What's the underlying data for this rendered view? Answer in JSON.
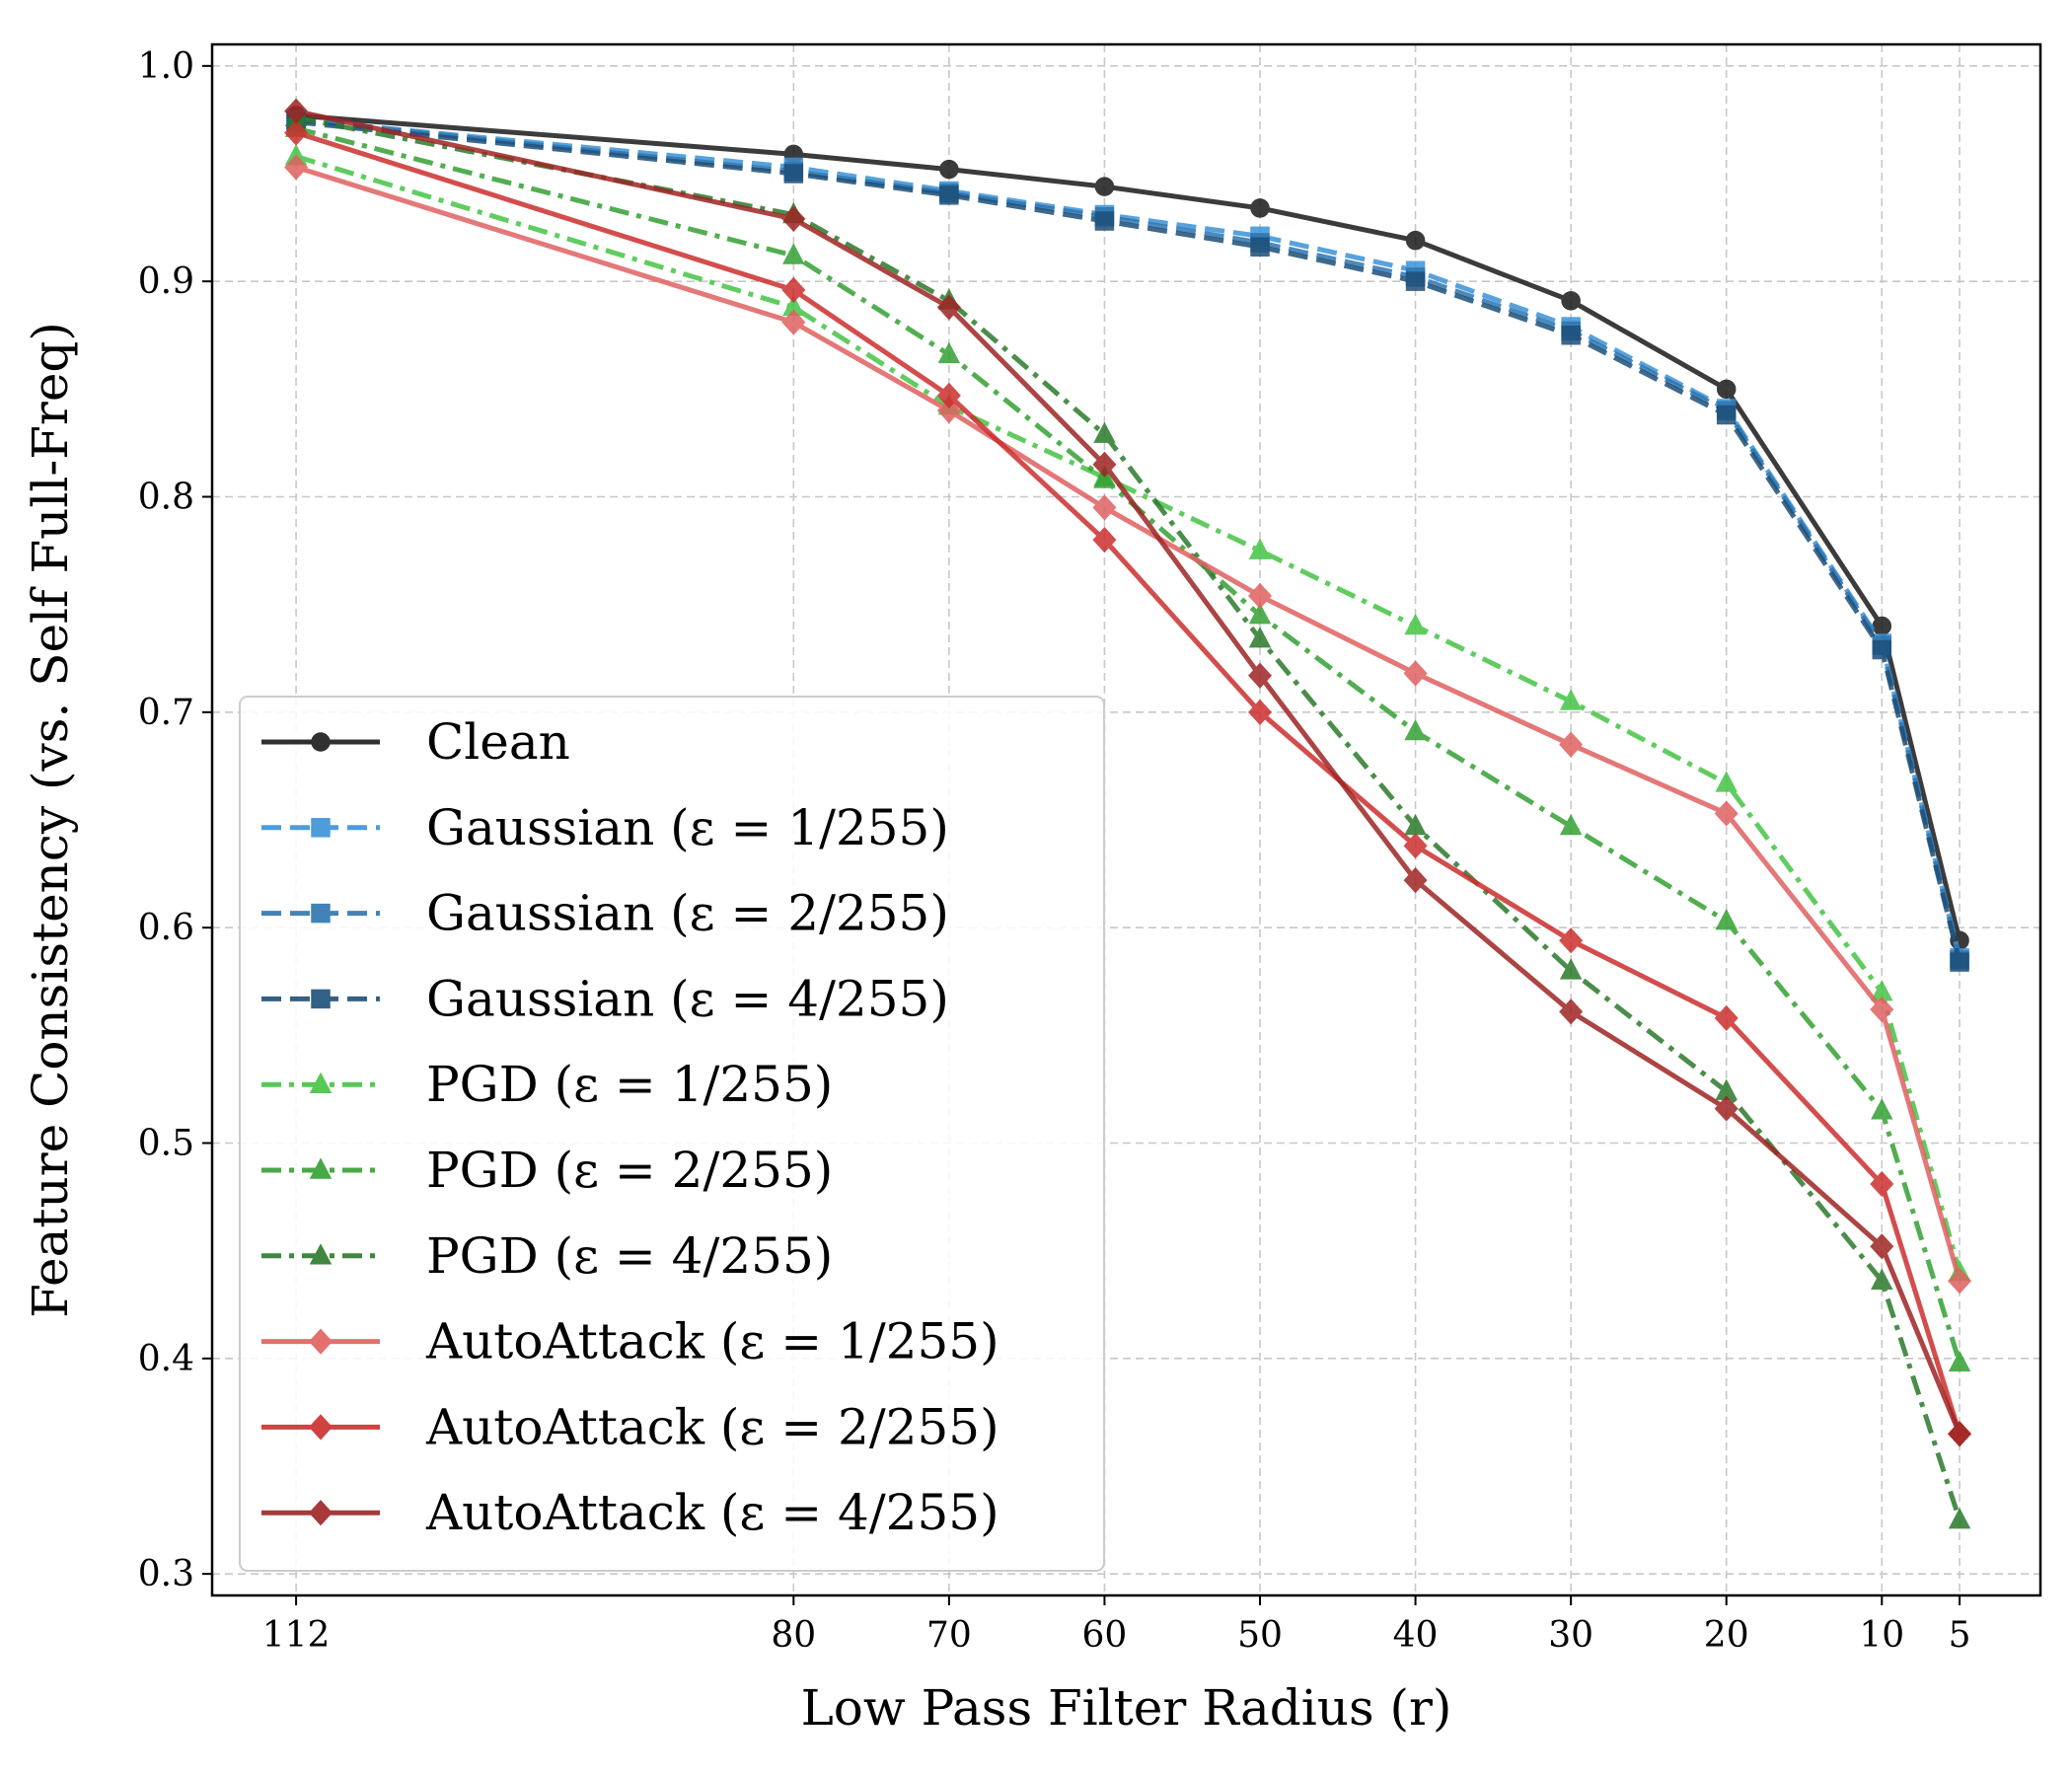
{
  "chart_data": {
    "type": "line",
    "title": "",
    "xlabel": "Low Pass Filter Radius (r)",
    "ylabel": "Feature Consistency (vs. Self Full-Freq)",
    "x": [
      112,
      80,
      70,
      60,
      50,
      40,
      30,
      20,
      10,
      5
    ],
    "x_tick_labels": [
      "112",
      "80",
      "70",
      "60",
      "50",
      "40",
      "30",
      "20",
      "10",
      "5"
    ],
    "y_ticks": [
      0.3,
      0.4,
      0.5,
      0.6,
      0.7,
      0.8,
      0.9,
      1.0
    ],
    "y_tick_labels": [
      "0.3",
      "0.4",
      "0.5",
      "0.6",
      "0.7",
      "0.8",
      "0.9",
      "1.0"
    ],
    "ylim": [
      0.29,
      1.01
    ],
    "xlim": [
      117.4,
      -0.2
    ],
    "x_reversed": true,
    "grid": true,
    "legend_position": "lower-left",
    "series": [
      {
        "name": "Clean",
        "color": "#1a1a1a",
        "dash": "solid",
        "marker": "circle",
        "values": [
          0.977,
          0.959,
          0.952,
          0.944,
          0.934,
          0.919,
          0.891,
          0.85,
          0.74,
          0.594
        ]
      },
      {
        "name": "Gaussian (ε = 1/255)",
        "color": "#3a92d8",
        "dash": "dashed",
        "marker": "square",
        "values": [
          0.975,
          0.953,
          0.942,
          0.931,
          0.921,
          0.905,
          0.879,
          0.841,
          0.732,
          0.586
        ]
      },
      {
        "name": "Gaussian (ε = 2/255)",
        "color": "#2e75b0",
        "dash": "dashed",
        "marker": "square",
        "values": [
          0.975,
          0.951,
          0.941,
          0.93,
          0.918,
          0.902,
          0.877,
          0.84,
          0.731,
          0.585
        ]
      },
      {
        "name": "Gaussian (ε = 4/255)",
        "color": "#1d4f78",
        "dash": "dashed",
        "marker": "square",
        "values": [
          0.974,
          0.95,
          0.94,
          0.928,
          0.916,
          0.9,
          0.875,
          0.838,
          0.729,
          0.584
        ]
      },
      {
        "name": "PGD (ε = 1/255)",
        "color": "#44c444",
        "dash": "dashdot",
        "marker": "triangle",
        "values": [
          0.958,
          0.888,
          0.842,
          0.809,
          0.775,
          0.74,
          0.705,
          0.667,
          0.57,
          0.44
        ]
      },
      {
        "name": "PGD (ε = 2/255)",
        "color": "#33a033",
        "dash": "dashdot",
        "marker": "triangle",
        "values": [
          0.971,
          0.912,
          0.866,
          0.808,
          0.745,
          0.691,
          0.647,
          0.603,
          0.515,
          0.398
        ]
      },
      {
        "name": "PGD (ε = 4/255)",
        "color": "#2b7a2b",
        "dash": "dashdot",
        "marker": "triangle",
        "values": [
          0.976,
          0.931,
          0.891,
          0.829,
          0.734,
          0.647,
          0.58,
          0.524,
          0.436,
          0.325
        ]
      },
      {
        "name": "AutoAttack (ε = 1/255)",
        "color": "#e06060",
        "dash": "solid",
        "marker": "diamond",
        "values": [
          0.953,
          0.881,
          0.84,
          0.795,
          0.754,
          0.718,
          0.685,
          0.653,
          0.562,
          0.436
        ]
      },
      {
        "name": "AutoAttack (ε = 2/255)",
        "color": "#cc2e2e",
        "dash": "solid",
        "marker": "diamond",
        "values": [
          0.969,
          0.896,
          0.847,
          0.78,
          0.7,
          0.638,
          0.594,
          0.558,
          0.481,
          0.365
        ]
      },
      {
        "name": "AutoAttack (ε = 4/255)",
        "color": "#9e2424",
        "dash": "solid",
        "marker": "diamond",
        "values": [
          0.979,
          0.929,
          0.888,
          0.815,
          0.717,
          0.622,
          0.561,
          0.516,
          0.452,
          0.365
        ]
      }
    ]
  }
}
